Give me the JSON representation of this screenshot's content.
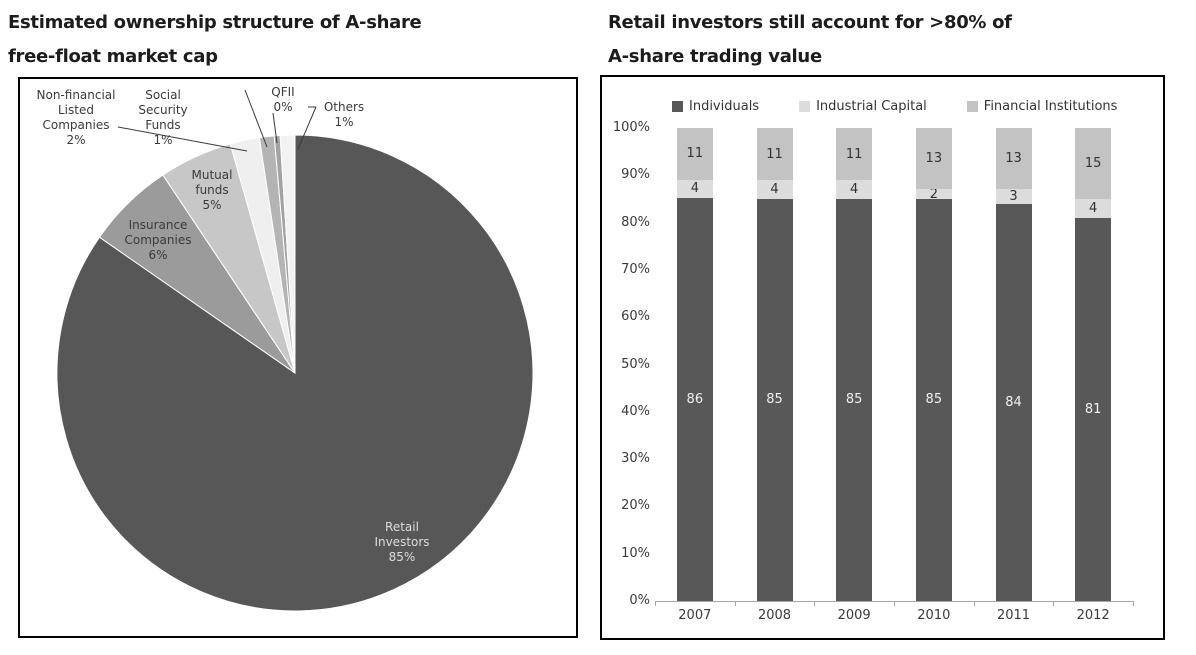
{
  "chart_data": [
    {
      "type": "pie",
      "title": "Estimated ownership structure of A-share free-float market cap",
      "title_lines": [
        "Estimated ownership structure of A-share",
        "free-float market cap"
      ],
      "legend_position": "none",
      "slices": [
        {
          "label": "Retail Investors",
          "value": 85,
          "pct_label": "85%",
          "color": "#575757",
          "label_lines": [
            "Retail",
            "Investors",
            "85%"
          ]
        },
        {
          "label": "Insurance Companies",
          "value": 6,
          "pct_label": "6%",
          "color": "#9b9b9b",
          "label_lines": [
            "Insurance",
            "Companies",
            "6%"
          ]
        },
        {
          "label": "Mutual funds",
          "value": 5,
          "pct_label": "5%",
          "color": "#c7c7c7",
          "label_lines": [
            "Mutual",
            "funds",
            "5%"
          ]
        },
        {
          "label": "Non-financial Listed Companies",
          "value": 2,
          "pct_label": "2%",
          "color": "#efefef",
          "label_lines": [
            "Non-financial",
            "Listed",
            "Companies",
            "2%"
          ]
        },
        {
          "label": "Social Security Funds",
          "value": 1,
          "pct_label": "1%",
          "color": "#b4b4b4",
          "label_lines": [
            "Social",
            "Security",
            "Funds",
            "1%"
          ]
        },
        {
          "label": "QFII",
          "value": 0,
          "pct_label": "0%",
          "color": "#a3a3a3",
          "label_lines": [
            "QFII",
            "0%"
          ]
        },
        {
          "label": "Others",
          "value": 1,
          "pct_label": "1%",
          "color": "#f2f2f2",
          "label_lines": [
            "Others",
            "1%"
          ]
        }
      ]
    },
    {
      "type": "bar",
      "subtype": "stacked",
      "title": "Retail investors still account for >80% of A-share trading value",
      "title_lines": [
        "Retail investors still account for >80% of",
        "A-share trading value"
      ],
      "categories": [
        "2007",
        "2008",
        "2009",
        "2010",
        "2011",
        "2012"
      ],
      "series": [
        {
          "name": "Individuals",
          "color": "#585858",
          "values": [
            86,
            85,
            85,
            85,
            84,
            81
          ]
        },
        {
          "name": "Industrial Capital",
          "color": "#dcdcdc",
          "values": [
            4,
            4,
            4,
            2,
            3,
            4
          ]
        },
        {
          "name": "Financial Institutions",
          "color": "#c3c3c3",
          "values": [
            11,
            11,
            11,
            13,
            13,
            15
          ]
        }
      ],
      "yticks": [
        "0%",
        "10%",
        "20%",
        "30%",
        "40%",
        "50%",
        "60%",
        "70%",
        "80%",
        "90%",
        "100%"
      ],
      "ylim": [
        0,
        100
      ],
      "grid": false,
      "legend_position": "top"
    }
  ]
}
